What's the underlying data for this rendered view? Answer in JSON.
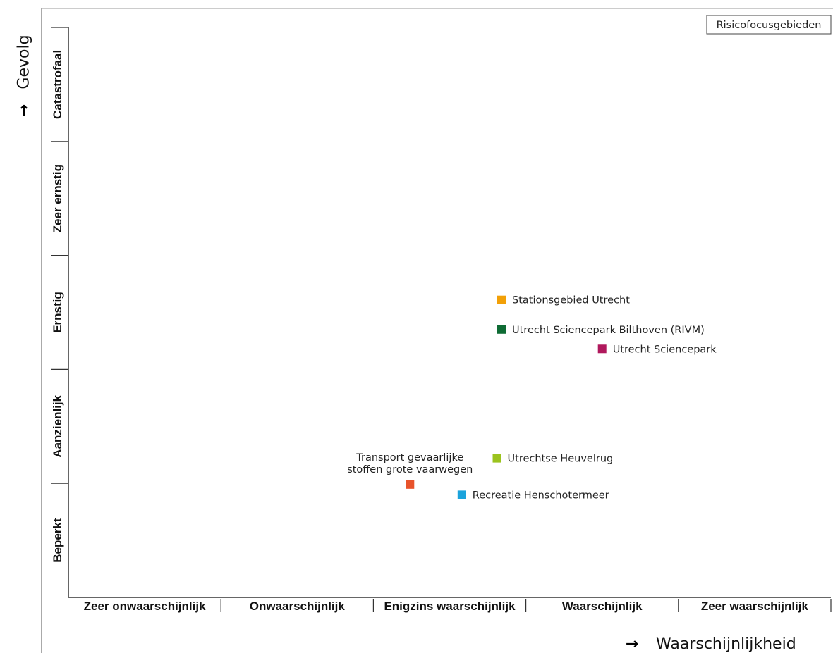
{
  "chart_data": {
    "type": "scatter",
    "title": "",
    "legend": "Risicofocusgebieden",
    "xlabel": "Waarschijnlijkheid",
    "ylabel": "Gevolg",
    "x_categories": [
      "Zeer onwaarschijnlijk",
      "Onwaarschijnlijk",
      "Enigzins waarschijnlijk",
      "Waarschijnlijk",
      "Zeer waarschijnlijk"
    ],
    "y_categories": [
      "Beperkt",
      "Aanzienlijk",
      "Ernstig",
      "Zeer ernstig",
      "Catastrofaal"
    ],
    "xlim": [
      0,
      5
    ],
    "ylim": [
      0,
      5
    ],
    "points": [
      {
        "label": "Stationsgebied Utrecht",
        "x": 2.84,
        "y": 2.61,
        "color": "#f2a007",
        "label_side": "right"
      },
      {
        "label": "Utrecht Sciencepark Bilthoven (RIVM)",
        "x": 2.84,
        "y": 2.35,
        "color": "#0e6b34",
        "label_side": "right"
      },
      {
        "label": "Utrecht Sciencepark",
        "x": 3.5,
        "y": 2.18,
        "color": "#b0185c",
        "label_side": "right"
      },
      {
        "label": "Utrechtse Heuvelrug",
        "x": 2.81,
        "y": 1.22,
        "color": "#9bc31e",
        "label_side": "right"
      },
      {
        "label": "Recreatie Henschotermeer",
        "x": 2.58,
        "y": 0.9,
        "color": "#1ba3dc",
        "label_side": "right"
      },
      {
        "label": "Transport gevaarlijke stoffen grote vaarwegen",
        "label_lines": [
          "Transport gevaarlijke",
          "stoffen grote vaarwegen"
        ],
        "x": 2.24,
        "y": 0.99,
        "color": "#e8532b",
        "label_side": "above"
      }
    ]
  }
}
